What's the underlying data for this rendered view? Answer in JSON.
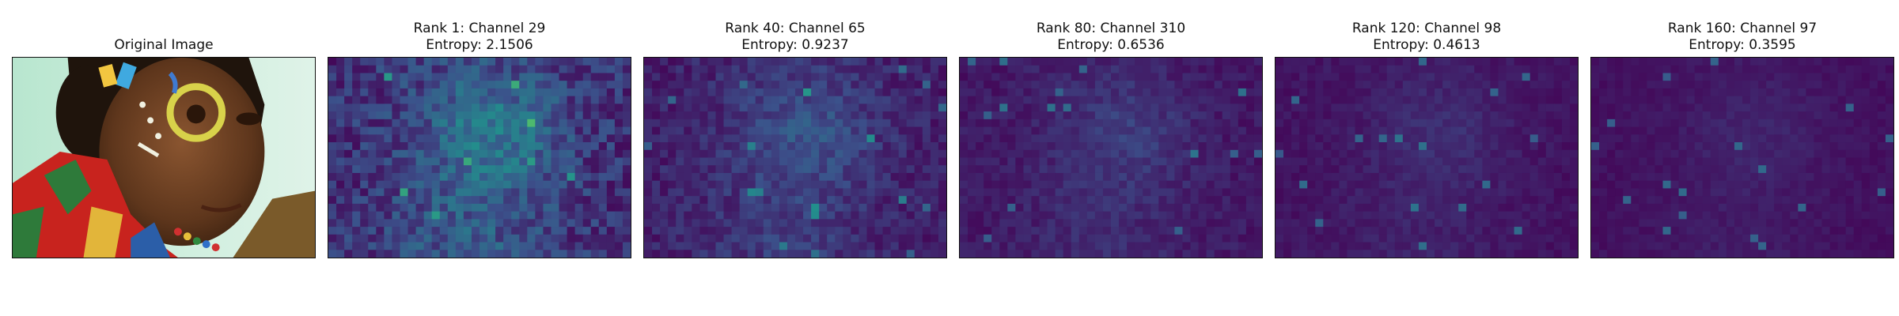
{
  "figure": {
    "original": {
      "title": "Original Image"
    },
    "heatmaps": [
      {
        "rank_label": "Rank 1: Channel 29",
        "entropy_label": "Entropy: 2.1506"
      },
      {
        "rank_label": "Rank 40: Channel 65",
        "entropy_label": "Entropy: 0.9237"
      },
      {
        "rank_label": "Rank 80: Channel 310",
        "entropy_label": "Entropy: 0.6536"
      },
      {
        "rank_label": "Rank 120: Channel 98",
        "entropy_label": "Entropy: 0.4613"
      },
      {
        "rank_label": "Rank 160: Channel 97",
        "entropy_label": "Entropy: 0.3595"
      }
    ],
    "colormap": "viridis"
  }
}
